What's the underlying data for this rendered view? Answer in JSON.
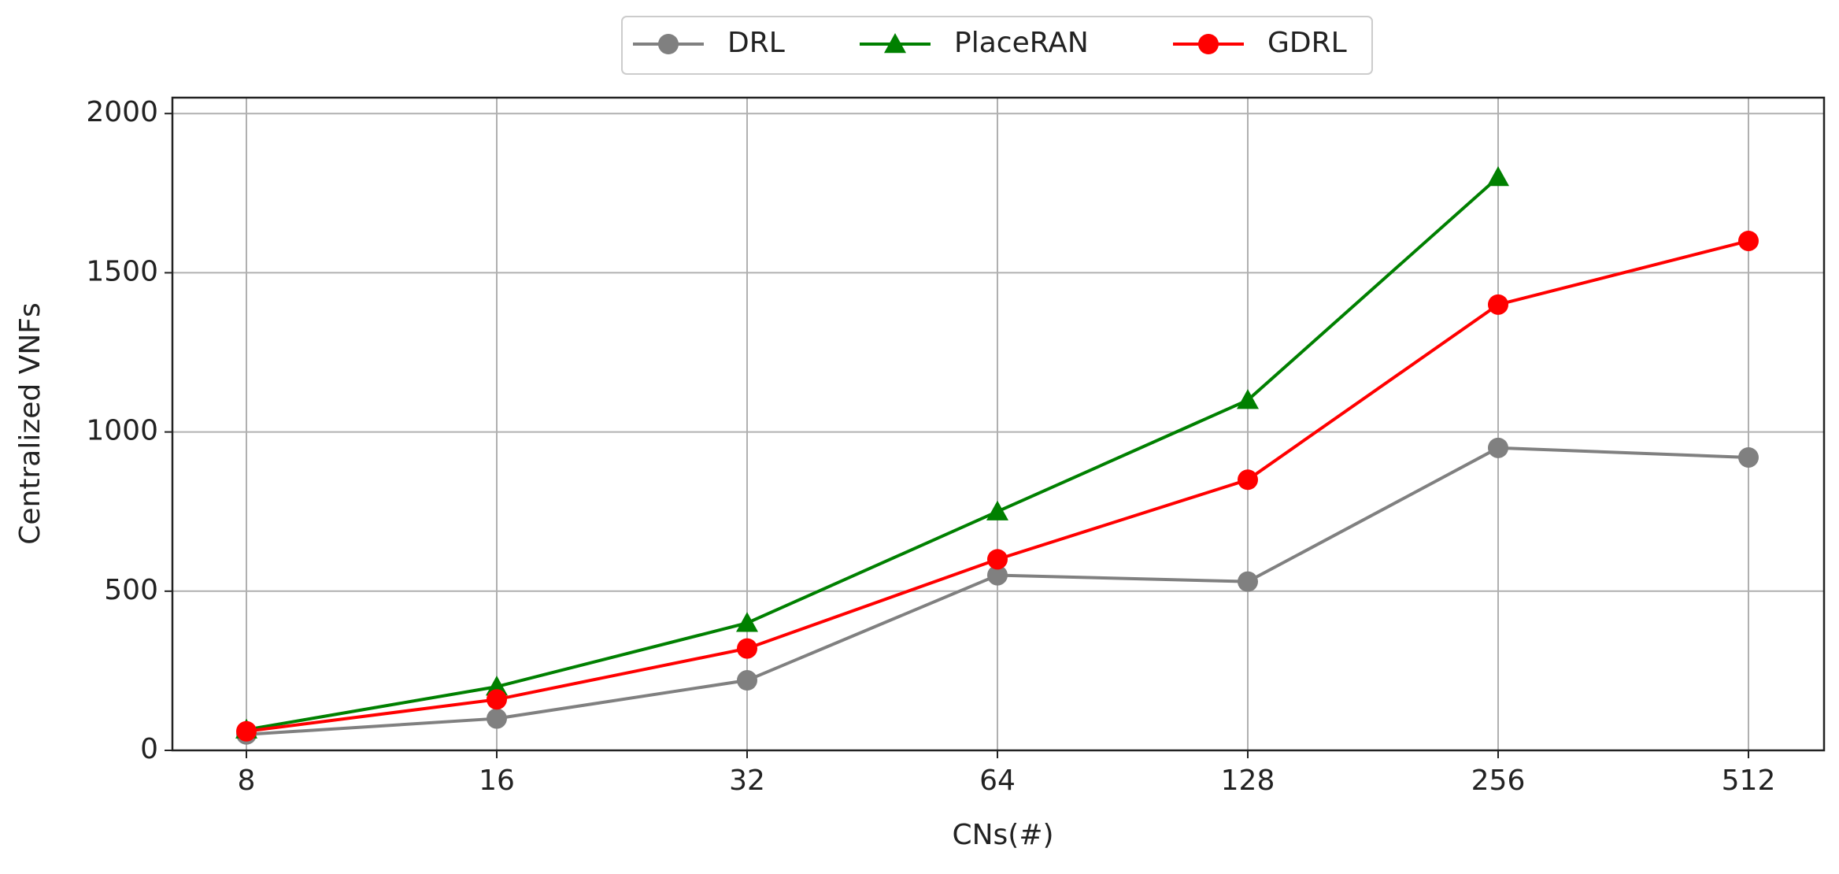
{
  "chart_data": {
    "type": "line",
    "xlabel": "CNs(#)",
    "ylabel": "Centralized VNFs",
    "categories": [
      "8",
      "16",
      "32",
      "64",
      "128",
      "256",
      "512"
    ],
    "series": [
      {
        "name": "DRL",
        "color": "#808080",
        "marker": "circle",
        "values": [
          50,
          100,
          220,
          550,
          530,
          950,
          920
        ]
      },
      {
        "name": "PlaceRAN",
        "color": "#008000",
        "marker": "triangle",
        "values": [
          65,
          200,
          400,
          750,
          1100,
          1800,
          null
        ]
      },
      {
        "name": "GDRL",
        "color": "#ff0000",
        "marker": "circle",
        "values": [
          60,
          160,
          320,
          600,
          850,
          1400,
          1600
        ]
      }
    ],
    "ylim": [
      0,
      2050
    ],
    "yticks": [
      0,
      500,
      1000,
      1500,
      2000
    ],
    "grid": true
  }
}
